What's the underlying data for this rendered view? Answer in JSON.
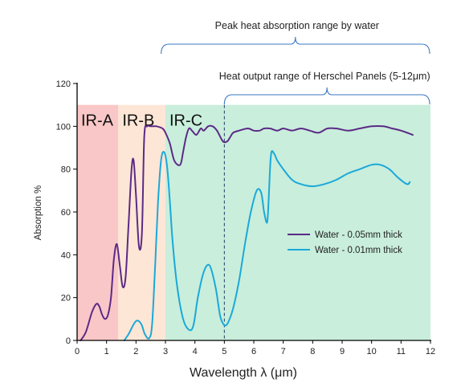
{
  "chart_data": {
    "type": "line",
    "xlabel": "Wavelength λ (μm)",
    "ylabel": "Absorption %",
    "xlim": [
      0,
      12
    ],
    "ylim": [
      0,
      120
    ],
    "x_ticks": [
      "0",
      "1",
      "2",
      "3",
      "4",
      "5",
      "6",
      "7",
      "8",
      "9",
      "10",
      "11",
      "12"
    ],
    "y_ticks": [
      "0",
      "20",
      "40",
      "60",
      "80",
      "100",
      "120"
    ],
    "bands": [
      {
        "label": "IR-A",
        "range": [
          0,
          1.4
        ],
        "color": "#f9c7c7"
      },
      {
        "label": "IR-B",
        "range": [
          1.4,
          3.0
        ],
        "color": "#fde6d6"
      },
      {
        "label": "IR-C",
        "range": [
          3.0,
          12.0
        ],
        "color": "#c9eedc"
      }
    ],
    "band_top": 110,
    "annotations": [
      {
        "text": "Peak heat absorption range by water",
        "range": [
          2.8,
          12.0
        ]
      },
      {
        "text": "Heat output range of Herschel Panels (5-12μm)",
        "range": [
          5.0,
          12.0
        ]
      }
    ],
    "marker_line_x": 5.0,
    "legend_position": "center-right",
    "series": [
      {
        "name": "Water - 0.05mm thick",
        "color": "#5b2a86",
        "x": [
          0.12,
          0.3,
          0.5,
          0.65,
          0.75,
          0.85,
          0.95,
          1.05,
          1.15,
          1.25,
          1.35,
          1.45,
          1.55,
          1.65,
          1.75,
          1.85,
          1.92,
          2.0,
          2.1,
          2.2,
          2.28,
          2.38,
          2.48,
          2.58,
          2.7,
          2.9,
          3.0,
          3.15,
          3.3,
          3.5,
          3.6,
          3.7,
          3.8,
          3.9,
          4.05,
          4.2,
          4.3,
          4.45,
          4.6,
          4.75,
          4.95,
          5.1,
          5.2,
          5.3,
          5.5,
          5.8,
          6.0,
          6.2,
          6.35,
          6.55,
          6.8,
          7.0,
          7.3,
          7.6,
          7.9,
          8.2,
          8.5,
          8.8,
          9.2,
          9.6,
          10.0,
          10.4,
          10.7,
          11.0,
          11.4
        ],
        "y": [
          0,
          4,
          13,
          17,
          16,
          12,
          10,
          12,
          20,
          38,
          45,
          35,
          25,
          30,
          55,
          80,
          84,
          68,
          44,
          50,
          95,
          100,
          100,
          100,
          100,
          99,
          97,
          92,
          84,
          82,
          88,
          95,
          99,
          98,
          96,
          99,
          98,
          100,
          100,
          98,
          93,
          93,
          95,
          97,
          98,
          99,
          98,
          98,
          99,
          99,
          98,
          99,
          98,
          99,
          98,
          97,
          99,
          99,
          98,
          99,
          100,
          100,
          99,
          98,
          96
        ]
      },
      {
        "name": "Water - 0.01mm thick",
        "color": "#1aa9d9",
        "x": [
          1.6,
          1.75,
          1.9,
          2.0,
          2.1,
          2.2,
          2.3,
          2.45,
          2.55,
          2.65,
          2.75,
          2.85,
          2.95,
          3.05,
          3.15,
          3.25,
          3.4,
          3.6,
          3.8,
          3.95,
          4.1,
          4.3,
          4.5,
          4.7,
          4.85,
          4.95,
          5.05,
          5.15,
          5.3,
          5.5,
          5.7,
          5.9,
          6.1,
          6.25,
          6.35,
          6.45,
          6.5,
          6.55,
          6.6,
          6.7,
          6.8,
          7.0,
          7.3,
          7.6,
          8.0,
          8.4,
          8.8,
          9.2,
          9.6,
          10.0,
          10.3,
          10.6,
          10.9,
          11.2,
          11.3
        ],
        "y": [
          0,
          3,
          7,
          9,
          9,
          7,
          3,
          1,
          8,
          35,
          65,
          84,
          88,
          82,
          65,
          45,
          25,
          10,
          5,
          7,
          20,
          32,
          35,
          25,
          12,
          8,
          7,
          9,
          15,
          28,
          45,
          60,
          70,
          69,
          60,
          55,
          64,
          80,
          88,
          87,
          84,
          80,
          75,
          73,
          72,
          73,
          75,
          78,
          80,
          82,
          82,
          80,
          76,
          73,
          74
        ]
      }
    ]
  }
}
